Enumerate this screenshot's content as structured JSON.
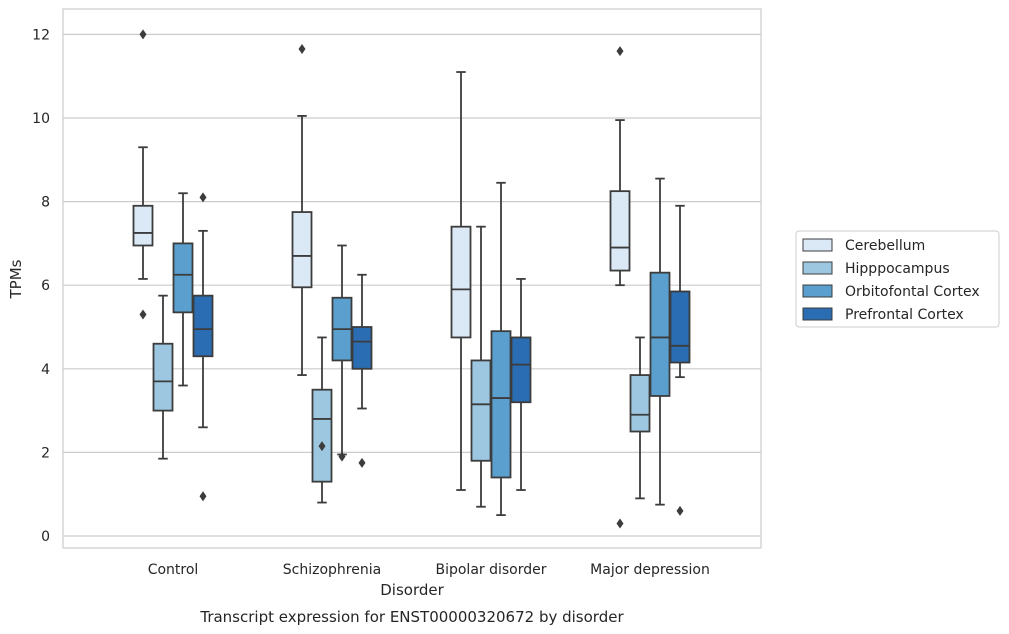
{
  "chart_data": {
    "type": "box",
    "caption": "Transcript expression for ENST00000320672 by disorder",
    "xlabel": "Disorder",
    "ylabel": "TPMs",
    "ylim": [
      -0.3,
      12.6
    ],
    "yticks": [
      0,
      2,
      4,
      6,
      8,
      10,
      12
    ],
    "grid": "horizontal",
    "legend_position": "right",
    "categories": [
      "Control",
      "Schizophrenia",
      "Bipolar disorder",
      "Major depression"
    ],
    "series": [
      {
        "name": "Cerebellum",
        "color": "#dbe9f6",
        "boxes": [
          {
            "whisker_low": 6.15,
            "q1": 6.95,
            "median": 7.25,
            "q3": 7.9,
            "whisker_high": 9.3,
            "outliers": [
              12.0,
              5.3
            ]
          },
          {
            "whisker_low": 3.85,
            "q1": 5.95,
            "median": 6.7,
            "q3": 7.75,
            "whisker_high": 10.05,
            "outliers": [
              11.65
            ]
          },
          {
            "whisker_low": 1.1,
            "q1": 4.75,
            "median": 5.9,
            "q3": 7.4,
            "whisker_high": 11.1,
            "outliers": []
          },
          {
            "whisker_low": 6.0,
            "q1": 6.35,
            "median": 6.9,
            "q3": 8.25,
            "whisker_high": 9.95,
            "outliers": [
              11.6,
              0.3
            ]
          }
        ]
      },
      {
        "name": "Hipppocampus",
        "color": "#9dc7e0",
        "boxes": [
          {
            "whisker_low": 1.85,
            "q1": 3.0,
            "median": 3.7,
            "q3": 4.6,
            "whisker_high": 5.75,
            "outliers": []
          },
          {
            "whisker_low": 0.8,
            "q1": 1.3,
            "median": 2.8,
            "q3": 3.5,
            "whisker_high": 4.75,
            "outliers": [
              2.15
            ]
          },
          {
            "whisker_low": 0.7,
            "q1": 1.8,
            "median": 3.15,
            "q3": 4.2,
            "whisker_high": 7.4,
            "outliers": []
          },
          {
            "whisker_low": 0.9,
            "q1": 2.5,
            "median": 2.9,
            "q3": 3.85,
            "whisker_high": 4.75,
            "outliers": []
          }
        ]
      },
      {
        "name": "Orbitofontal Cortex",
        "color": "#5a9fcd",
        "boxes": [
          {
            "whisker_low": 3.6,
            "q1": 5.35,
            "median": 6.25,
            "q3": 7.0,
            "whisker_high": 8.2,
            "outliers": []
          },
          {
            "whisker_low": 1.95,
            "q1": 4.2,
            "median": 4.95,
            "q3": 5.7,
            "whisker_high": 6.95,
            "outliers": [
              1.9
            ]
          },
          {
            "whisker_low": 0.5,
            "q1": 1.4,
            "median": 3.3,
            "q3": 4.9,
            "whisker_high": 8.45,
            "outliers": []
          },
          {
            "whisker_low": 0.75,
            "q1": 3.35,
            "median": 4.75,
            "q3": 6.3,
            "whisker_high": 8.55,
            "outliers": []
          }
        ]
      },
      {
        "name": "Prefrontal Cortex",
        "color": "#2a6db2",
        "boxes": [
          {
            "whisker_low": 2.6,
            "q1": 4.3,
            "median": 4.95,
            "q3": 5.75,
            "whisker_high": 7.3,
            "outliers": [
              8.1,
              0.95
            ]
          },
          {
            "whisker_low": 3.05,
            "q1": 4.0,
            "median": 4.65,
            "q3": 5.0,
            "whisker_high": 6.25,
            "outliers": [
              1.75
            ]
          },
          {
            "whisker_low": 1.1,
            "q1": 3.2,
            "median": 4.1,
            "q3": 4.75,
            "whisker_high": 6.15,
            "outliers": []
          },
          {
            "whisker_low": 3.8,
            "q1": 4.15,
            "median": 4.55,
            "q3": 5.85,
            "whisker_high": 7.9,
            "outliers": [
              0.6
            ]
          }
        ]
      }
    ]
  }
}
